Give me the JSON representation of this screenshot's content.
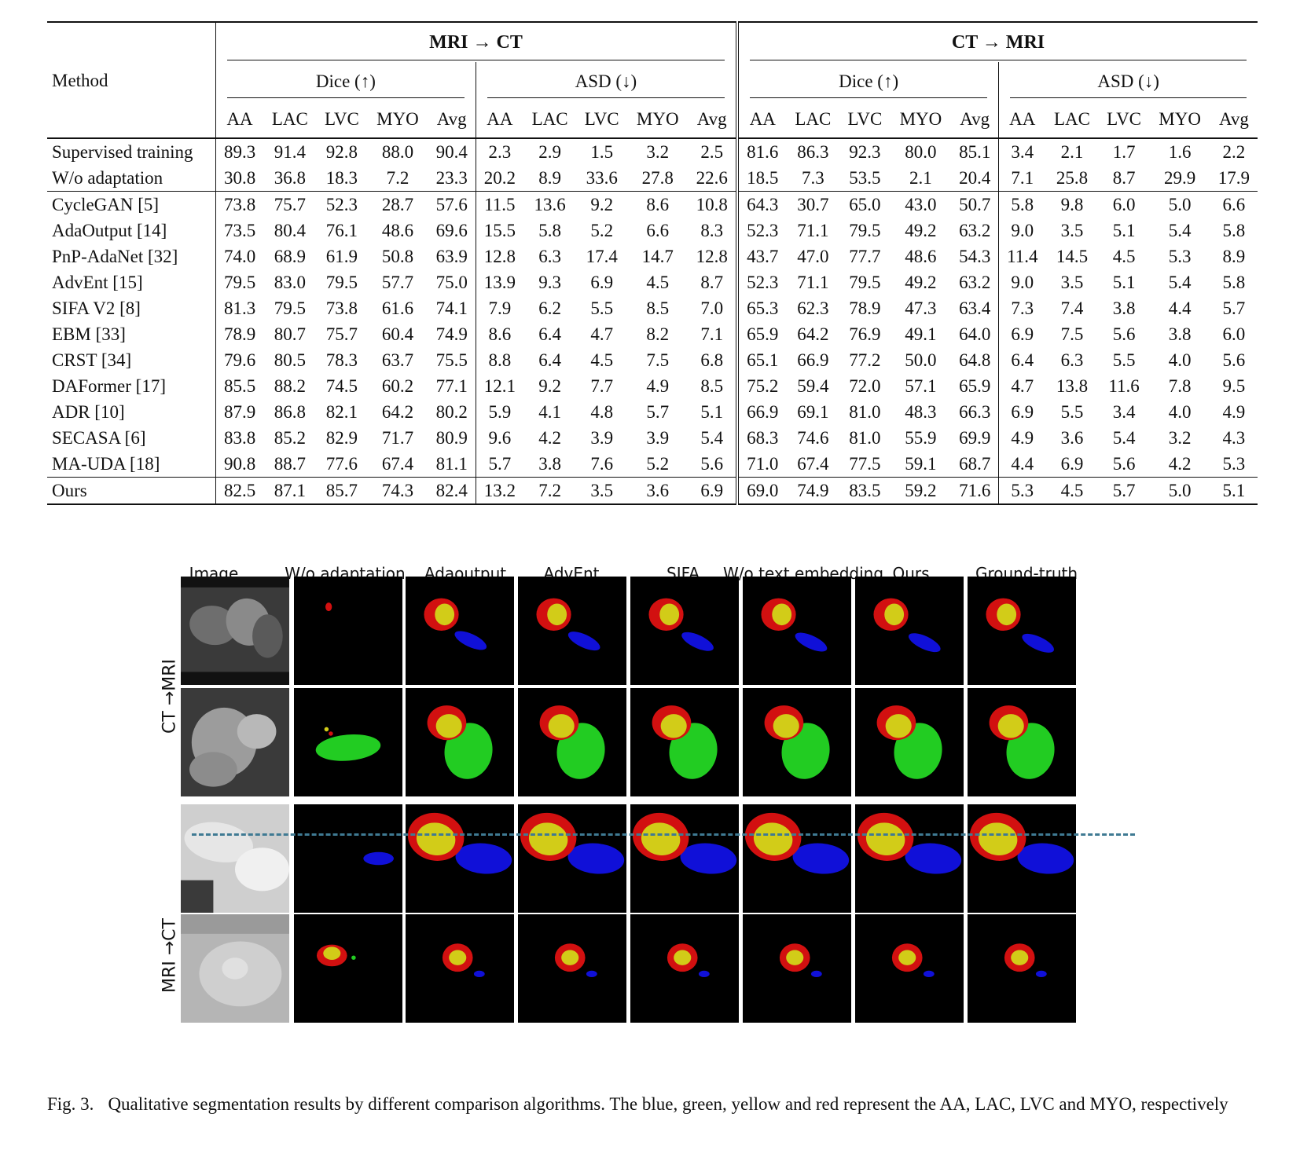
{
  "table": {
    "method_label": "Method",
    "direction_groups": [
      "MRI → CT",
      "CT → MRI"
    ],
    "metric_groups": [
      "Dice (↑)",
      "ASD (↓)",
      "Dice (↑)",
      "ASD (↓)"
    ],
    "columns": [
      "AA",
      "LAC",
      "LVC",
      "MYO",
      "Avg"
    ],
    "row_groups": [
      [
        {
          "method": "Supervised training",
          "values": [
            "89.3",
            "91.4",
            "92.8",
            "88.0",
            "90.4",
            "2.3",
            "2.9",
            "1.5",
            "3.2",
            "2.5",
            "81.6",
            "86.3",
            "92.3",
            "80.0",
            "85.1",
            "3.4",
            "2.1",
            "1.7",
            "1.6",
            "2.2"
          ],
          "bold": []
        },
        {
          "method": "W/o adaptation",
          "values": [
            "30.8",
            "36.8",
            "18.3",
            "7.2",
            "23.3",
            "20.2",
            "8.9",
            "33.6",
            "27.8",
            "22.6",
            "18.5",
            "7.3",
            "53.5",
            "2.1",
            "20.4",
            "7.1",
            "25.8",
            "8.7",
            "29.9",
            "17.9"
          ],
          "bold": []
        }
      ],
      [
        {
          "method": "CycleGAN [5]",
          "values": [
            "73.8",
            "75.7",
            "52.3",
            "28.7",
            "57.6",
            "11.5",
            "13.6",
            "9.2",
            "8.6",
            "10.8",
            "64.3",
            "30.7",
            "65.0",
            "43.0",
            "50.7",
            "5.8",
            "9.8",
            "6.0",
            "5.0",
            "6.6"
          ],
          "bold": []
        },
        {
          "method": "AdaOutput [14]",
          "values": [
            "73.5",
            "80.4",
            "76.1",
            "48.6",
            "69.6",
            "15.5",
            "5.8",
            "5.2",
            "6.6",
            "8.3",
            "52.3",
            "71.1",
            "79.5",
            "49.2",
            "63.2",
            "9.0",
            "3.5",
            "5.1",
            "5.4",
            "5.8"
          ],
          "bold": [
            16
          ]
        },
        {
          "method": "PnP-AdaNet [32]",
          "values": [
            "74.0",
            "68.9",
            "61.9",
            "50.8",
            "63.9",
            "12.8",
            "6.3",
            "17.4",
            "14.7",
            "12.8",
            "43.7",
            "47.0",
            "77.7",
            "48.6",
            "54.3",
            "11.4",
            "14.5",
            "4.5",
            "5.3",
            "8.9"
          ],
          "bold": []
        },
        {
          "method": "AdvEnt [15]",
          "values": [
            "79.5",
            "83.0",
            "79.5",
            "57.7",
            "75.0",
            "13.9",
            "9.3",
            "6.9",
            "4.5",
            "8.7",
            "52.3",
            "71.1",
            "79.5",
            "49.2",
            "63.2",
            "9.0",
            "3.5",
            "5.1",
            "5.4",
            "5.8"
          ],
          "bold": [
            16
          ]
        },
        {
          "method": "SIFA V2 [8]",
          "values": [
            "81.3",
            "79.5",
            "73.8",
            "61.6",
            "74.1",
            "7.9",
            "6.2",
            "5.5",
            "8.5",
            "7.0",
            "65.3",
            "62.3",
            "78.9",
            "47.3",
            "63.4",
            "7.3",
            "7.4",
            "3.8",
            "4.4",
            "5.7"
          ],
          "bold": []
        },
        {
          "method": "EBM [33]",
          "values": [
            "78.9",
            "80.7",
            "75.7",
            "60.4",
            "74.9",
            "8.6",
            "6.4",
            "4.7",
            "8.2",
            "7.1",
            "65.9",
            "64.2",
            "76.9",
            "49.1",
            "64.0",
            "6.9",
            "7.5",
            "5.6",
            "3.8",
            "6.0"
          ],
          "bold": []
        },
        {
          "method": "CRST [34]",
          "values": [
            "79.6",
            "80.5",
            "78.3",
            "63.7",
            "75.5",
            "8.8",
            "6.4",
            "4.5",
            "7.5",
            "6.8",
            "65.1",
            "66.9",
            "77.2",
            "50.0",
            "64.8",
            "6.4",
            "6.3",
            "5.5",
            "4.0",
            "5.6"
          ],
          "bold": []
        },
        {
          "method": "DAFormer [17]",
          "values": [
            "85.5",
            "88.2",
            "74.5",
            "60.2",
            "77.1",
            "12.1",
            "9.2",
            "7.7",
            "4.9",
            "8.5",
            "75.2",
            "59.4",
            "72.0",
            "57.1",
            "65.9",
            "4.7",
            "13.8",
            "11.6",
            "7.8",
            "9.5"
          ],
          "bold": [
            10
          ]
        },
        {
          "method": "ADR [10]",
          "values": [
            "87.9",
            "86.8",
            "82.1",
            "64.2",
            "80.2",
            "5.9",
            "4.1",
            "4.8",
            "5.7",
            "5.1",
            "66.9",
            "69.1",
            "81.0",
            "48.3",
            "66.3",
            "6.9",
            "5.5",
            "3.4",
            "4.0",
            "4.9"
          ],
          "bold": [
            9,
            17
          ]
        },
        {
          "method": "SECASA [6]",
          "values": [
            "83.8",
            "85.2",
            "82.9",
            "71.7",
            "80.9",
            "9.6",
            "4.2",
            "3.9",
            "3.9",
            "5.4",
            "68.3",
            "74.6",
            "81.0",
            "55.9",
            "69.9",
            "4.9",
            "3.6",
            "5.4",
            "3.2",
            "4.3"
          ],
          "bold": [
            18,
            19
          ]
        },
        {
          "method": "MA-UDA [18]",
          "values": [
            "90.8",
            "88.7",
            "77.6",
            "67.4",
            "81.1",
            "5.7",
            "3.8",
            "7.6",
            "5.2",
            "5.6",
            "71.0",
            "67.4",
            "77.5",
            "59.1",
            "68.7",
            "4.4",
            "6.9",
            "5.6",
            "4.2",
            "5.3"
          ],
          "bold": [
            0,
            1,
            5,
            6,
            15
          ]
        }
      ],
      [
        {
          "method": "Ours",
          "values": [
            "82.5",
            "87.1",
            "85.7",
            "74.3",
            "82.4",
            "13.2",
            "7.2",
            "3.5",
            "3.6",
            "6.9",
            "69.0",
            "74.9",
            "83.5",
            "59.2",
            "71.6",
            "5.3",
            "4.5",
            "5.7",
            "5.0",
            "5.1"
          ],
          "bold": [
            2,
            3,
            4,
            7,
            8,
            11,
            12,
            13,
            14
          ],
          "method_bold": true
        }
      ]
    ]
  },
  "figure": {
    "column_labels": [
      "Image",
      "W/o adaptation",
      "Adaoutput",
      "AdvEnt",
      "SIFA",
      "W/o text embedding",
      "Ours",
      "Ground-truth"
    ],
    "row_group_labels": [
      "CT →MRI",
      "MRI →CT"
    ],
    "colors": {
      "AA": "#1010d8",
      "LAC": "#22cc22",
      "LVC": "#d2cc18",
      "MYO": "#d21010",
      "divider": "#3f7a93"
    }
  },
  "caption": {
    "label": "Fig. 3.",
    "text": "Qualitative segmentation results by different comparison algorithms. The blue, green, yellow and red represent the AA, LAC, LVC and MYO, respectively"
  }
}
